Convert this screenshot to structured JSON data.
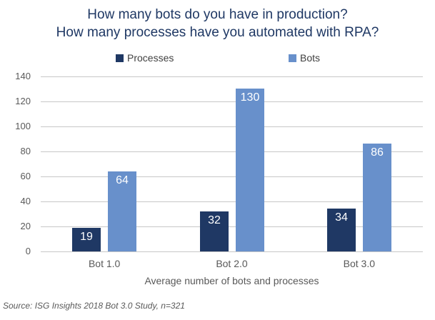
{
  "title": {
    "line1": "How many bots do you have in production?",
    "line2": "How many processes have you automated with RPA?"
  },
  "chart_data": {
    "type": "bar",
    "title": "How many bots do you have in production? How many processes have you automated with RPA?",
    "categories": [
      "Bot 1.0",
      "Bot 2.0",
      "Bot 3.0"
    ],
    "series": [
      {
        "name": "Processes",
        "color": "#1F3864",
        "values": [
          19,
          32,
          34
        ]
      },
      {
        "name": "Bots",
        "color": "#6890CB",
        "values": [
          64,
          130,
          86
        ]
      }
    ],
    "xlabel": "Average number of bots and processes",
    "ylabel": "",
    "ylim": [
      0,
      140
    ],
    "yticks": [
      0,
      20,
      40,
      60,
      80,
      100,
      120,
      140
    ],
    "grid": true,
    "legend_position": "top",
    "data_labels": "inside-end-white"
  },
  "source": "Source: ISG Insights 2018 Bot 3.0 Study, n=321",
  "colors": {
    "title_text": "#1F3864",
    "axis_text": "#595959",
    "legend_text": "#404040",
    "gridline": "#C8C8C8",
    "data_label_text": "#ffffff",
    "background": "#ffffff"
  }
}
